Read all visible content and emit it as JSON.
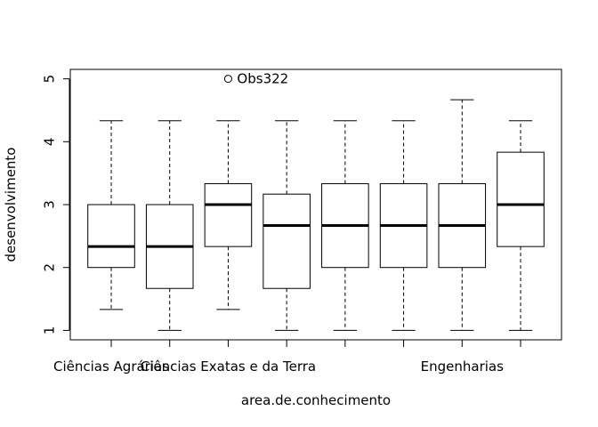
{
  "chart_data": {
    "type": "boxplot",
    "xlabel": "area.de.conhecimento",
    "ylabel": "desenvolvimento",
    "ylim": [
      0.85,
      5.15
    ],
    "yticks": [
      1,
      2,
      3,
      4,
      5
    ],
    "x_tick_labels_shown": [
      {
        "group": 1,
        "label": "Ciências Agrárias"
      },
      {
        "group": 3,
        "label": "Ciências Exatas e da Terra"
      },
      {
        "group": 7,
        "label": "Engenharias"
      }
    ],
    "groups": [
      {
        "lower_whisker": 1.333,
        "q1": 2.0,
        "median": 2.333,
        "q3": 3.0,
        "upper_whisker": 4.333,
        "outliers": []
      },
      {
        "lower_whisker": 1.0,
        "q1": 1.667,
        "median": 2.333,
        "q3": 3.0,
        "upper_whisker": 4.333,
        "outliers": []
      },
      {
        "lower_whisker": 1.333,
        "q1": 2.333,
        "median": 3.0,
        "q3": 3.333,
        "upper_whisker": 4.333,
        "outliers": [
          {
            "value": 5.0,
            "label": "Obs322"
          }
        ]
      },
      {
        "lower_whisker": 1.0,
        "q1": 1.667,
        "median": 2.667,
        "q3": 3.167,
        "upper_whisker": 4.333,
        "outliers": []
      },
      {
        "lower_whisker": 1.0,
        "q1": 2.0,
        "median": 2.667,
        "q3": 3.333,
        "upper_whisker": 4.333,
        "outliers": []
      },
      {
        "lower_whisker": 1.0,
        "q1": 2.0,
        "median": 2.667,
        "q3": 3.333,
        "upper_whisker": 4.333,
        "outliers": []
      },
      {
        "lower_whisker": 1.0,
        "q1": 2.0,
        "median": 2.667,
        "q3": 3.333,
        "upper_whisker": 4.667,
        "outliers": []
      },
      {
        "lower_whisker": 1.0,
        "q1": 2.333,
        "median": 3.0,
        "q3": 3.833,
        "upper_whisker": 4.333,
        "outliers": []
      }
    ]
  }
}
